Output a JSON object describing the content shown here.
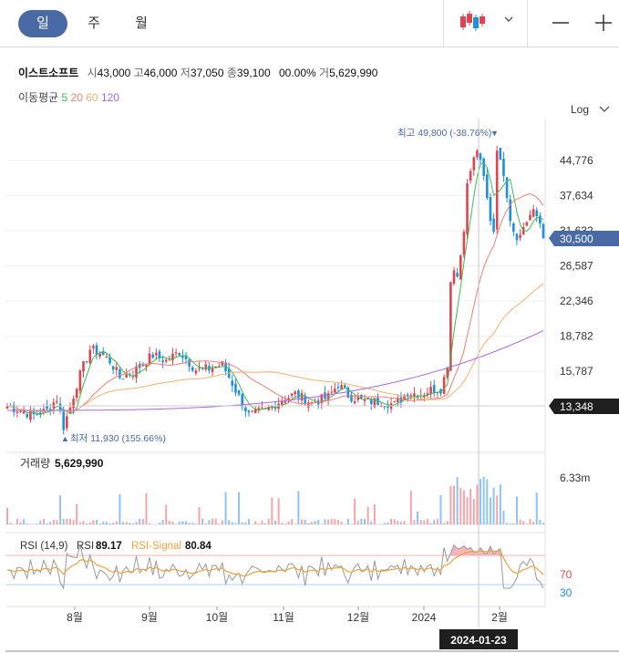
{
  "tabs": {
    "day": "일",
    "week": "주",
    "month": "월"
  },
  "stock": {
    "name": "이스트소프트",
    "open_label": "시",
    "open": "43,000",
    "high_label": "고",
    "high": "46,000",
    "low_label": "저",
    "low": "37,050",
    "close_label": "종",
    "close": "39,100",
    "change": "0",
    "change_pct": "0.00%",
    "volume_label": "거",
    "volume": "5,629,990"
  },
  "ma": {
    "label": "이동평균",
    "p5": "5",
    "p20": "20",
    "p60": "60",
    "p120": "120"
  },
  "scale_label": "Log",
  "colors": {
    "up": "#e0454f",
    "down": "#1d8fe0",
    "ma5": "#3dbb4e",
    "ma20": "#f07e72",
    "ma60": "#f2b26e",
    "ma120": "#a867e0",
    "rsi": "#999999",
    "rsi_signal": "#f0a13d",
    "active_tab": "#4a6aa5"
  },
  "annotations": {
    "max": "최고 49,800 (-38.76%)",
    "min": "최저 11,930 (155.66%)"
  },
  "price_tags": {
    "current": "30,500",
    "crosshair": "13,348"
  },
  "volume_panel": {
    "label": "거래량",
    "value": "5,629,990",
    "tick": "6.33m"
  },
  "rsi_panel": {
    "label": "RSI (14,9)",
    "rsi_label": "RSI",
    "rsi_value": "89.17",
    "signal_label": "RSI-Signal",
    "signal_value": "80.84",
    "levels": [
      "70",
      "30"
    ]
  },
  "x_axis": {
    "months": [
      "8월",
      "9월",
      "10월",
      "11월",
      "12월",
      "2024",
      "2월"
    ],
    "crosshair_date": "2024-01-23"
  },
  "chart_data": {
    "type": "candlestick",
    "y_scale": "log",
    "y_ticks": [
      44776,
      37634,
      31632,
      26587,
      22346,
      18782,
      15787
    ],
    "ylim": [
      11500,
      52000
    ],
    "series": [
      {
        "name": "5",
        "type": "line"
      },
      {
        "name": "20",
        "type": "line"
      },
      {
        "name": "60",
        "type": "line"
      },
      {
        "name": "120",
        "type": "line"
      }
    ],
    "key_points": [
      {
        "date": "2024-01-25",
        "high": 49800
      },
      {
        "date": "2023-07-20",
        "low": 11930
      },
      {
        "date": "2024-02-16",
        "close": 30500
      }
    ],
    "ma120_end": 19300,
    "ma60_end": 23900,
    "rsi": {
      "ylim": [
        0,
        100
      ],
      "levels": [
        70,
        30
      ],
      "last": 89.17,
      "signal_last": 80.84
    }
  }
}
